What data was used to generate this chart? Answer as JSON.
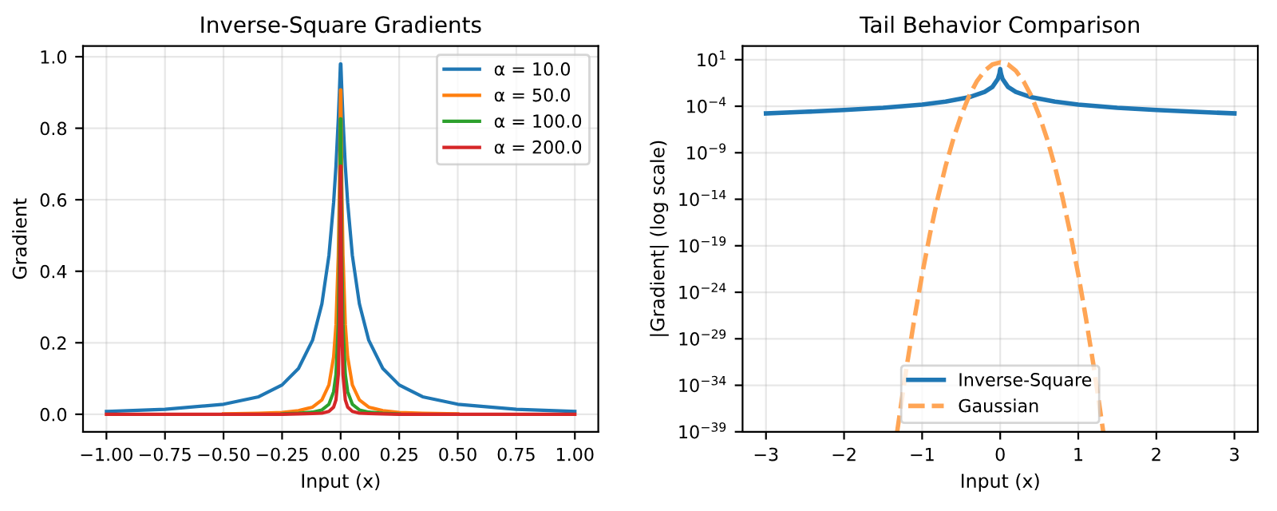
{
  "chart_data": [
    {
      "type": "line",
      "title": "Inverse-Square Gradients",
      "xlabel": "Input (x)",
      "ylabel": "Gradient",
      "x": [
        -1,
        -0.75,
        -0.5,
        -0.35,
        -0.25,
        -0.18,
        -0.12,
        -0.08,
        -0.05,
        -0.03,
        -0.02,
        -0.01,
        -0.005,
        -0.002,
        -0.001,
        0.001,
        0.002,
        0.005,
        0.01,
        0.02,
        0.03,
        0.05,
        0.08,
        0.12,
        0.18,
        0.25,
        0.35,
        0.5,
        0.75,
        1
      ],
      "series": [
        {
          "name": "α = 10.0",
          "color": "#1f77b4",
          "values": [
            0.008,
            0.014,
            0.028,
            0.049,
            0.082,
            0.128,
            0.207,
            0.309,
            0.444,
            0.592,
            0.694,
            0.826,
            0.907,
            0.961,
            0.98,
            0.98,
            0.961,
            0.907,
            0.826,
            0.694,
            0.592,
            0.444,
            0.309,
            0.207,
            0.128,
            0.082,
            0.049,
            0.028,
            0.014,
            0.008
          ]
        },
        {
          "name": "α = 50.0",
          "color": "#ff7f0e",
          "values": [
            null,
            null,
            0.001,
            0.003,
            0.005,
            0.01,
            0.02,
            0.04,
            0.082,
            0.16,
            0.25,
            0.444,
            0.64,
            0.826,
            0.907,
            0.907,
            0.826,
            0.64,
            0.444,
            0.25,
            0.16,
            0.082,
            0.04,
            0.02,
            0.01,
            0.005,
            0.003,
            0.001,
            null,
            null
          ]
        },
        {
          "name": "α = 100.0",
          "color": "#2ca02c",
          "values": [
            null,
            null,
            null,
            null,
            0.001,
            0.003,
            0.006,
            0.012,
            0.028,
            0.063,
            0.111,
            0.25,
            0.444,
            0.694,
            0.826,
            0.826,
            0.694,
            0.444,
            0.25,
            0.111,
            0.063,
            0.028,
            0.012,
            0.006,
            0.003,
            0.001,
            null,
            null,
            null,
            null
          ]
        },
        {
          "name": "α = 200.0",
          "color": "#d62728",
          "values": [
            0.0,
            0.0,
            0.0,
            0.0,
            0.0,
            0.001,
            0.002,
            0.003,
            0.008,
            0.02,
            0.04,
            0.111,
            0.25,
            0.51,
            0.694,
            0.694,
            0.51,
            0.25,
            0.111,
            0.04,
            0.02,
            0.008,
            0.003,
            0.002,
            0.001,
            0.0,
            0.0,
            0.0,
            0.0,
            0.0
          ]
        }
      ],
      "xlim": [
        -1.1,
        1.1
      ],
      "ylim": [
        -0.049,
        1.03
      ],
      "xticks": [
        {
          "value": -1,
          "label": "−1.00"
        },
        {
          "value": -0.75,
          "label": "−0.75"
        },
        {
          "value": -0.5,
          "label": "−0.50"
        },
        {
          "value": -0.25,
          "label": "−0.25"
        },
        {
          "value": 0,
          "label": "0.00"
        },
        {
          "value": 0.25,
          "label": "0.25"
        },
        {
          "value": 0.5,
          "label": "0.50"
        },
        {
          "value": 0.75,
          "label": "0.75"
        },
        {
          "value": 1,
          "label": "1.00"
        }
      ],
      "yticks": [
        {
          "value": 0,
          "label": "0.0"
        },
        {
          "value": 0.2,
          "label": "0.2"
        },
        {
          "value": 0.4,
          "label": "0.4"
        },
        {
          "value": 0.6,
          "label": "0.6"
        },
        {
          "value": 0.8,
          "label": "0.8"
        },
        {
          "value": 1,
          "label": "1.0"
        }
      ],
      "grid": true,
      "legend": "top right",
      "line_style": "solid",
      "marker": "none"
    },
    {
      "type": "line",
      "title": "Tail Behavior Comparison",
      "xlabel": "Input (x)",
      "ylabel": "|Gradient| (log scale)",
      "log": "y",
      "series": [
        {
          "name": "Inverse-Square",
          "color": "#1f77b4",
          "line_style": "solid",
          "x": [
            -3,
            -2.5,
            -2,
            -1.5,
            -1,
            -0.7,
            -0.4,
            -0.2,
            -0.1,
            -0.03,
            -0.01,
            0,
            0.01,
            0.03,
            0.1,
            0.2,
            0.4,
            0.7,
            1,
            1.5,
            2,
            2.5,
            3
          ],
          "values": [
            1.7e-05,
            2.5e-05,
            3.9e-05,
            6.8e-05,
            0.00015,
            0.00031,
            0.00092,
            0.0035,
            0.012,
            0.087,
            0.31,
            1,
            0.31,
            0.087,
            0.012,
            0.0035,
            0.00092,
            0.00031,
            0.00015,
            6.8e-05,
            3.9e-05,
            2.5e-05,
            1.7e-05
          ]
        },
        {
          "name": "Gaussian",
          "color": "#ffa555",
          "line_style": "dashed",
          "x": [
            -1.32,
            -1.2,
            -1.1,
            -1,
            -0.9,
            -0.8,
            -0.7,
            -0.6,
            -0.5,
            -0.4,
            -0.3,
            -0.2,
            -0.1,
            0,
            0.1,
            0.2,
            0.3,
            0.4,
            0.5,
            0.6,
            0.7,
            0.8,
            0.9,
            1,
            1.1,
            1.2,
            1.32
          ],
          "values": [
            1e-39,
            7.8e-33,
            1.3e-27,
            8.3e-23,
            1.8e-18,
            1.3e-14,
            3.5e-11,
            3.2e-08,
            1e-05,
            0.0012,
            0.047,
            0.65,
            3.1,
            5.2,
            3.1,
            0.65,
            0.047,
            0.0012,
            1e-05,
            3.2e-08,
            3.5e-11,
            1.3e-14,
            1.8e-18,
            8.3e-23,
            1.3e-27,
            7.8e-33,
            1e-39
          ]
        }
      ],
      "xlim": [
        -3.3,
        3.3
      ],
      "ylim": [
        1e-39,
        300
      ],
      "xticks": [
        {
          "value": -3,
          "label": "−3"
        },
        {
          "value": -2,
          "label": "−2"
        },
        {
          "value": -1,
          "label": "−1"
        },
        0,
        1,
        2,
        3
      ],
      "yticks": [
        {
          "value": 1e-39,
          "label": "10$^{−39}$"
        },
        {
          "value": 1e-34,
          "label": "10$^{−34}$"
        },
        {
          "value": 1e-29,
          "label": "10$^{−29}$"
        },
        {
          "value": 1e-24,
          "label": "10$^{−24}$"
        },
        {
          "value": 1e-19,
          "label": "10$^{−19}$"
        },
        {
          "value": 1e-14,
          "label": "10$^{−14}$"
        },
        {
          "value": 1e-09,
          "label": "10$^{−9}$"
        },
        {
          "value": 0.0001,
          "label": "10$^{−4}$"
        },
        {
          "value": 10,
          "label": "10$^{1}$"
        }
      ],
      "grid": true,
      "legend": "bottom",
      "marker": "none"
    }
  ]
}
